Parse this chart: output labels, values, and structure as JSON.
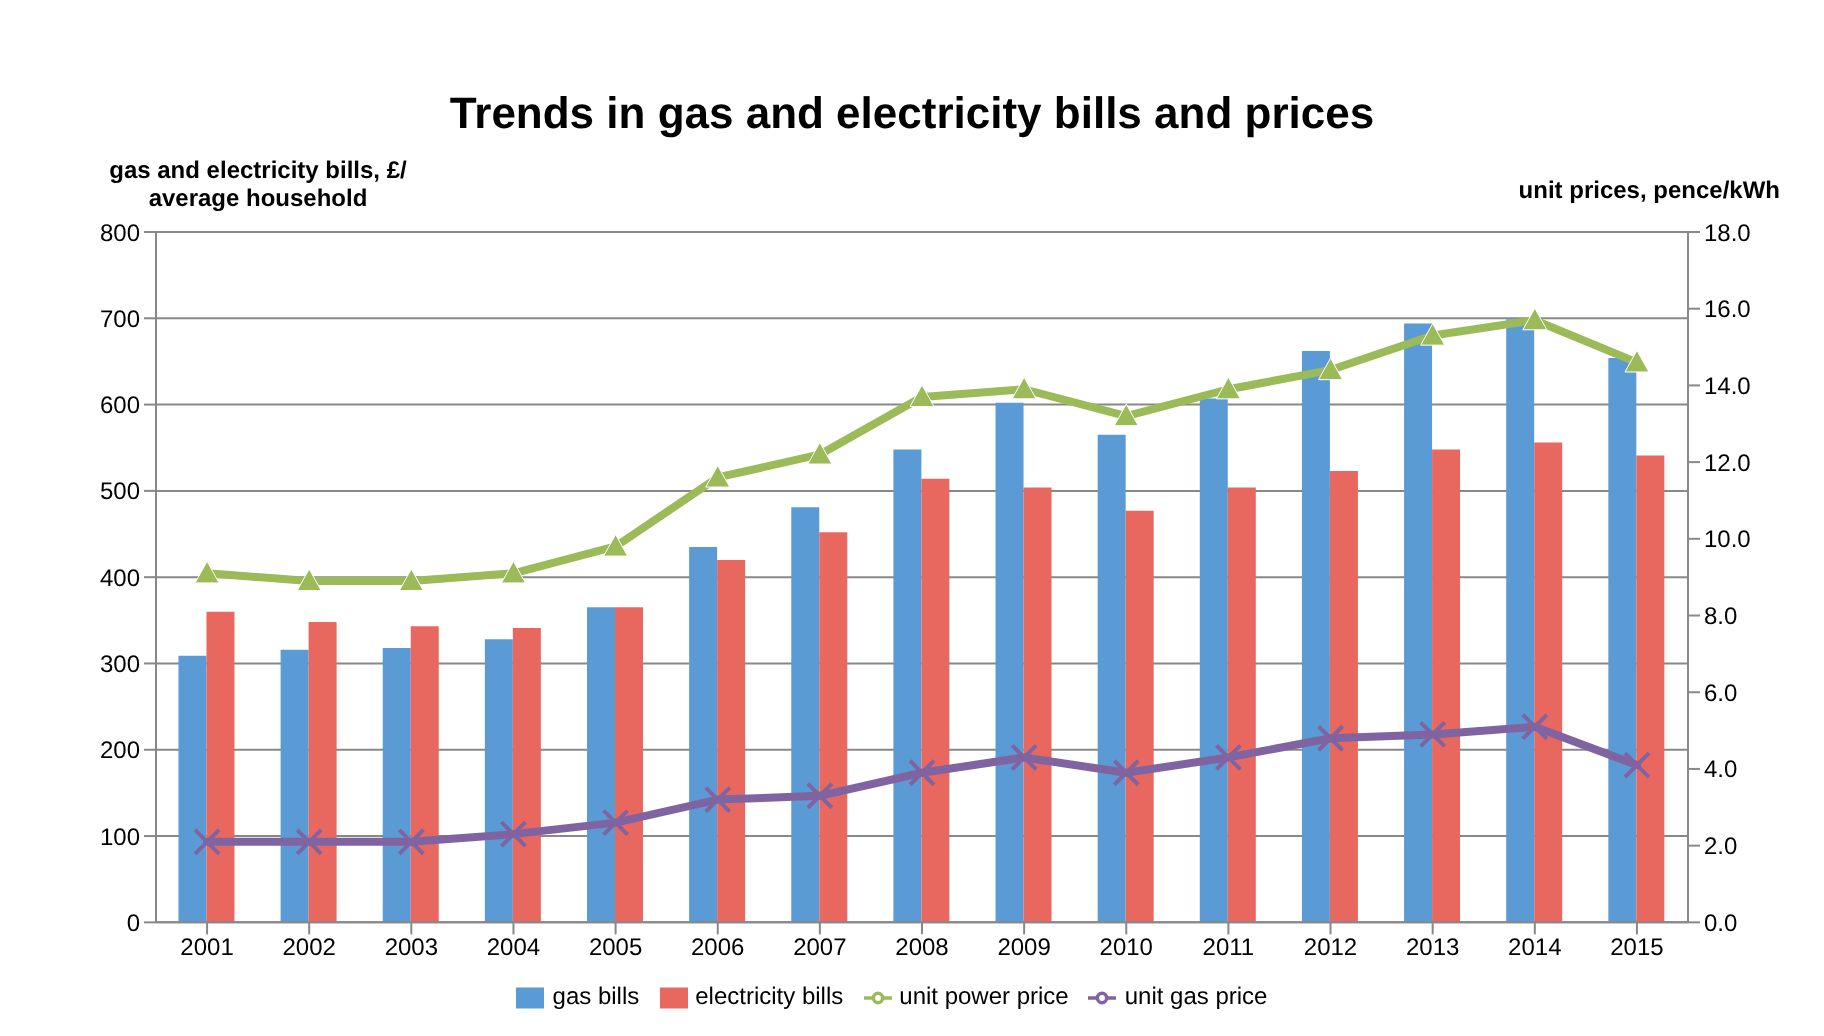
{
  "chart_data": {
    "type": "bar",
    "title": "Trends in gas and electricity bills and prices",
    "ylabel": "gas and electricity bills, £/ average household",
    "y2label": "unit prices, pence/kWh",
    "categories": [
      "2001",
      "2002",
      "2003",
      "2004",
      "2005",
      "2006",
      "2007",
      "2008",
      "2009",
      "2010",
      "2011",
      "2012",
      "2013",
      "2014",
      "2015"
    ],
    "series": [
      {
        "name": "gas bills",
        "color": "#5b9bd5",
        "values": [
          309,
          316,
          318,
          328,
          365,
          435,
          481,
          548,
          602,
          565,
          607,
          662,
          694,
          699,
          654
        ]
      },
      {
        "name": "electricity bills",
        "color": "#e8685f",
        "values": [
          360,
          348,
          343,
          341,
          365,
          420,
          452,
          514,
          504,
          477,
          504,
          523,
          548,
          556,
          541
        ]
      },
      {
        "name": "unit power price",
        "type": "line",
        "axis": "y2",
        "marker": "triangle",
        "color": "#9bbb59",
        "values": [
          9.1,
          8.9,
          8.9,
          9.1,
          9.8,
          11.6,
          12.2,
          13.7,
          13.9,
          13.2,
          13.9,
          14.4,
          15.3,
          15.7,
          14.6
        ]
      },
      {
        "name": "unit gas price",
        "type": "line",
        "axis": "y2",
        "marker": "cross",
        "color": "#8064a2",
        "values": [
          2.1,
          2.1,
          2.1,
          2.3,
          2.6,
          3.2,
          3.3,
          3.9,
          4.3,
          3.9,
          4.3,
          4.8,
          4.9,
          5.1,
          4.1
        ]
      }
    ],
    "ylim": [
      0,
      800
    ],
    "yticks": [
      0,
      100,
      200,
      300,
      400,
      500,
      600,
      700,
      800
    ],
    "y2lim": [
      0,
      18
    ],
    "y2ticks": [
      {
        "value": 0,
        "label": "0.0"
      },
      {
        "value": 2,
        "label": "2.0"
      },
      {
        "value": 4,
        "label": "4.0"
      },
      {
        "value": 6,
        "label": "6.0"
      },
      {
        "value": 8,
        "label": "8.0"
      },
      {
        "value": 10,
        "label": "10.0"
      },
      {
        "value": 12,
        "label": "12.0"
      },
      {
        "value": 14,
        "label": "14.0"
      },
      {
        "value": 16,
        "label": "16.0"
      },
      {
        "value": 18,
        "label": "18.0"
      }
    ],
    "grid": "y",
    "legend": "bottom"
  }
}
